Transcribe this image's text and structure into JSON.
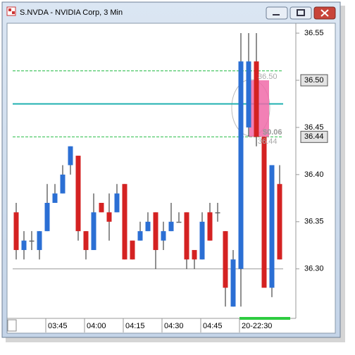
{
  "chart_data": {
    "type": "candlestick",
    "title": "S.NVDA - NVIDIA Corp, 3 Min",
    "categories": [
      null,
      null,
      null,
      null,
      "03:45",
      null,
      null,
      null,
      null,
      "04:00",
      null,
      null,
      null,
      null,
      "04:15",
      null,
      null,
      null,
      null,
      "04:30",
      null,
      null,
      null,
      null,
      "04:45",
      null,
      null,
      null,
      null,
      "20-22:30",
      null,
      null,
      null,
      null,
      null
    ],
    "open": [
      36.36,
      36.32,
      36.33,
      36.32,
      36.34,
      36.37,
      36.38,
      36.41,
      36.42,
      36.34,
      36.32,
      36.37,
      36.36,
      36.36,
      36.39,
      36.33,
      36.33,
      36.34,
      36.36,
      36.33,
      36.34,
      36.35,
      36.36,
      36.32,
      36.31,
      36.36,
      36.36,
      36.34,
      36.26,
      36.3,
      36.45,
      36.52,
      36.44,
      36.28,
      36.39
    ],
    "high": [
      36.37,
      36.34,
      36.34,
      36.34,
      36.39,
      36.39,
      36.41,
      36.43,
      36.42,
      36.34,
      36.38,
      36.37,
      36.38,
      36.39,
      36.39,
      36.33,
      36.35,
      36.36,
      36.36,
      36.35,
      36.37,
      36.36,
      36.36,
      36.32,
      36.36,
      36.37,
      36.37,
      36.34,
      36.32,
      36.55,
      36.55,
      36.55,
      36.44,
      36.41,
      36.41
    ],
    "low": [
      36.31,
      36.31,
      36.32,
      36.31,
      36.34,
      36.37,
      36.38,
      36.4,
      36.33,
      36.31,
      36.32,
      36.36,
      36.33,
      36.36,
      36.31,
      36.31,
      36.33,
      36.34,
      36.3,
      36.32,
      36.34,
      36.35,
      36.3,
      36.3,
      36.31,
      36.33,
      36.35,
      36.26,
      36.26,
      36.26,
      36.44,
      36.43,
      36.28,
      36.27,
      36.31
    ],
    "close": [
      36.32,
      36.33,
      36.33,
      36.34,
      36.37,
      36.38,
      36.4,
      36.43,
      36.34,
      36.32,
      36.36,
      36.36,
      36.35,
      36.38,
      36.31,
      36.31,
      36.34,
      36.35,
      36.32,
      36.34,
      36.35,
      36.35,
      36.31,
      36.31,
      36.35,
      36.33,
      36.36,
      36.28,
      36.31,
      36.52,
      36.52,
      36.44,
      36.28,
      36.41,
      36.31
    ],
    "up_color": "#2b6fd4",
    "down_color": "#d42222",
    "ylim": [
      36.249,
      36.559
    ],
    "yticks": [
      {
        "value": 36.3,
        "label": "36.30"
      },
      36.35,
      {
        "value": 36.4,
        "label": "36.40"
      },
      36.45,
      {
        "value": 36.5,
        "label": "36.50"
      },
      36.55
    ],
    "levels": [
      {
        "value": 36.51,
        "color": "#22bb44",
        "style": "dashed"
      },
      {
        "value": 36.44,
        "color": "#22bb44",
        "style": "dashed"
      },
      {
        "value": 36.475,
        "color": "#20b0b0",
        "style": "solid"
      },
      {
        "value": 36.3,
        "color": "#999999",
        "style": "solid"
      }
    ],
    "trade": {
      "entry": {
        "value": 36.5,
        "label": "36.50"
      },
      "exit": {
        "value": 36.44,
        "label": "36.44"
      },
      "profit": {
        "value": 0.06,
        "label": "$0.06"
      }
    }
  }
}
